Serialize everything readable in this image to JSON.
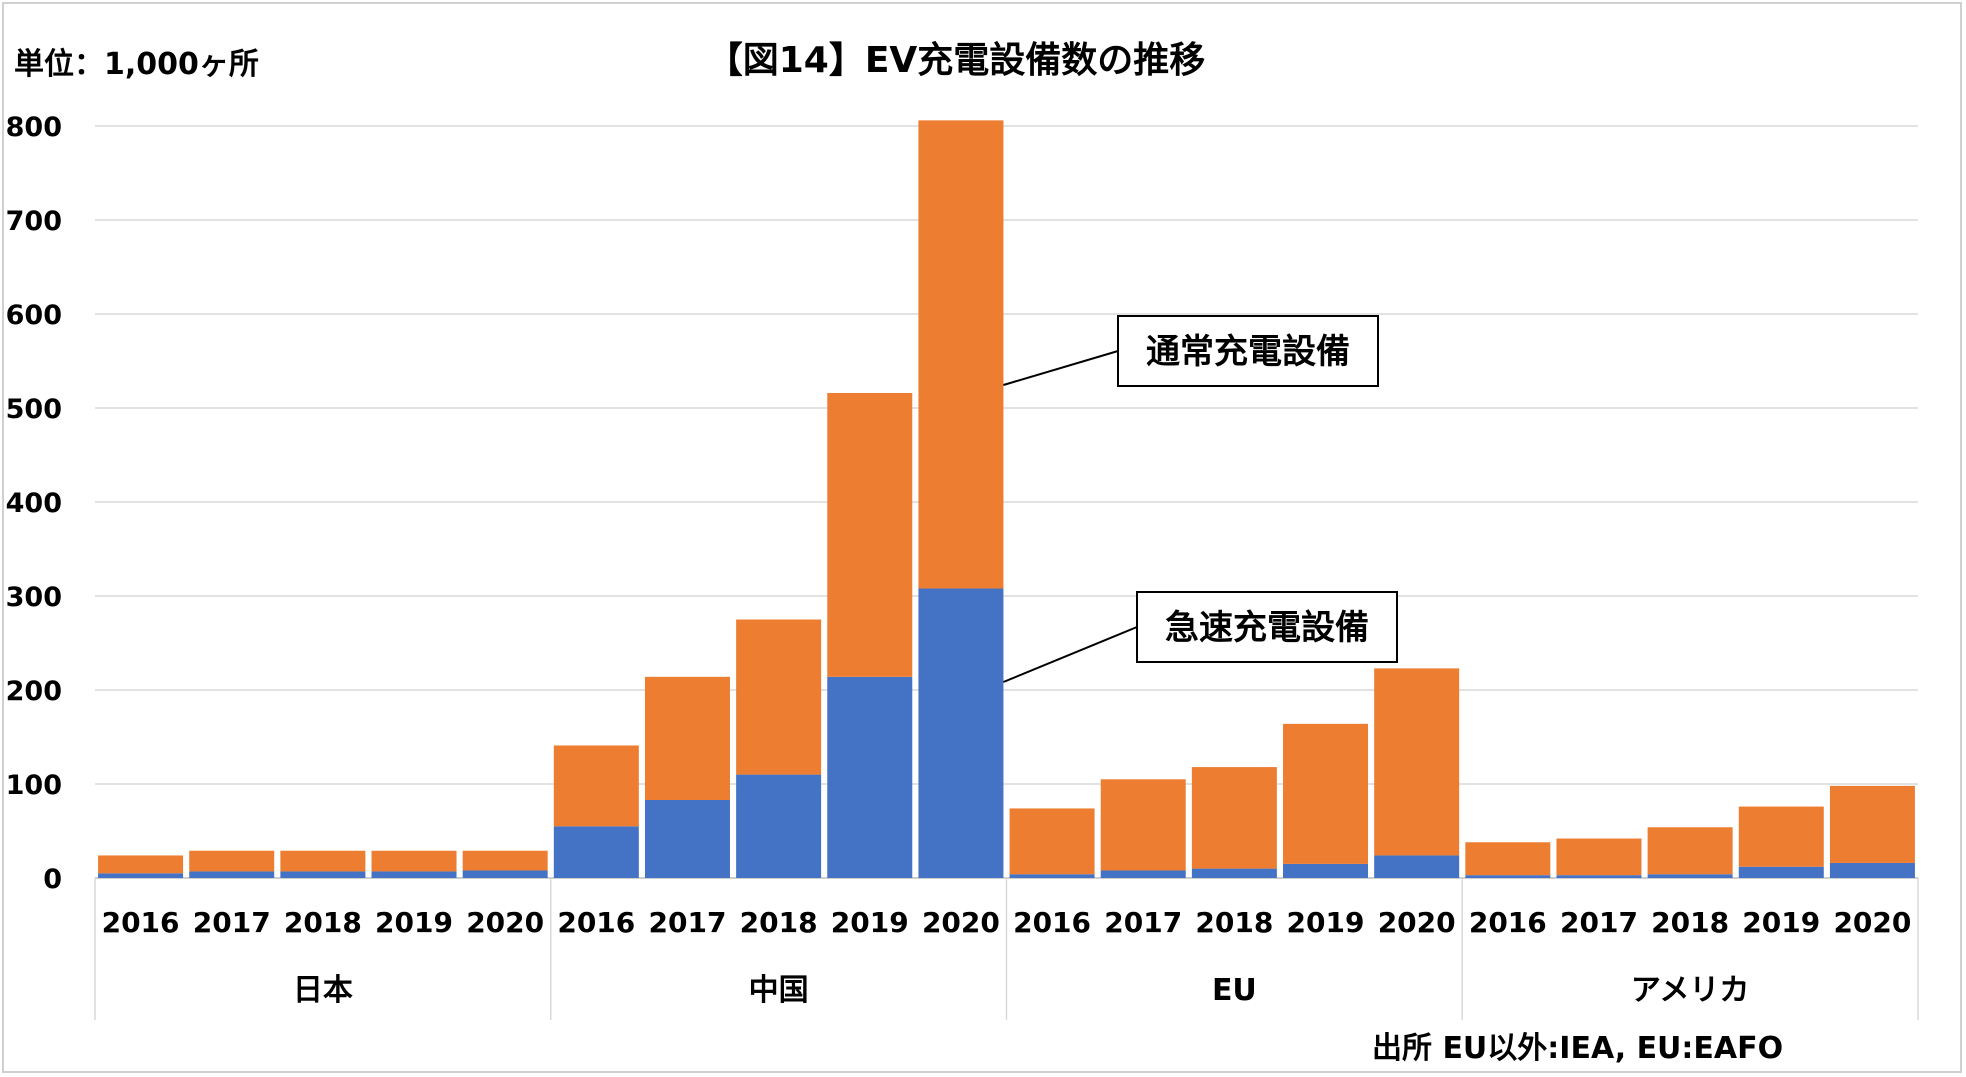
{
  "chart_data": {
    "type": "bar",
    "stacked": true,
    "title": "【図14】EV充電設備数の推移",
    "unit_label": "単位：1,000ヶ所",
    "source": "出所  EU以外:IEA,  EU:EAFO",
    "ylim": [
      0,
      800
    ],
    "yticks": [
      "0",
      "100",
      "200",
      "300",
      "400",
      "500",
      "600",
      "700",
      "800"
    ],
    "grid": true,
    "groups": [
      {
        "name": "日本",
        "years": [
          "2016",
          "2017",
          "2018",
          "2019",
          "2020"
        ]
      },
      {
        "name": "中国",
        "years": [
          "2016",
          "2017",
          "2018",
          "2019",
          "2020"
        ]
      },
      {
        "name": "EU",
        "years": [
          "2016",
          "2017",
          "2018",
          "2019",
          "2020"
        ]
      },
      {
        "name": "アメリカ",
        "years": [
          "2016",
          "2017",
          "2018",
          "2019",
          "2020"
        ]
      }
    ],
    "series": [
      {
        "name": "急速充電設備",
        "color": "#4472C4",
        "values": [
          5,
          7,
          7,
          7,
          8,
          55,
          83,
          110,
          214,
          308,
          4,
          8,
          10,
          15,
          24,
          3,
          3,
          4,
          12,
          16
        ]
      },
      {
        "name": "通常充電設備",
        "color": "#ED7D31",
        "values": [
          19,
          22,
          22,
          22,
          21,
          86,
          131,
          165,
          302,
          498,
          70,
          97,
          108,
          149,
          199,
          35,
          39,
          50,
          64,
          82
        ]
      }
    ],
    "callouts": [
      {
        "label": "通常充電設備",
        "series": "通常充電設備"
      },
      {
        "label": "急速充電設備",
        "series": "急速充電設備"
      }
    ]
  }
}
